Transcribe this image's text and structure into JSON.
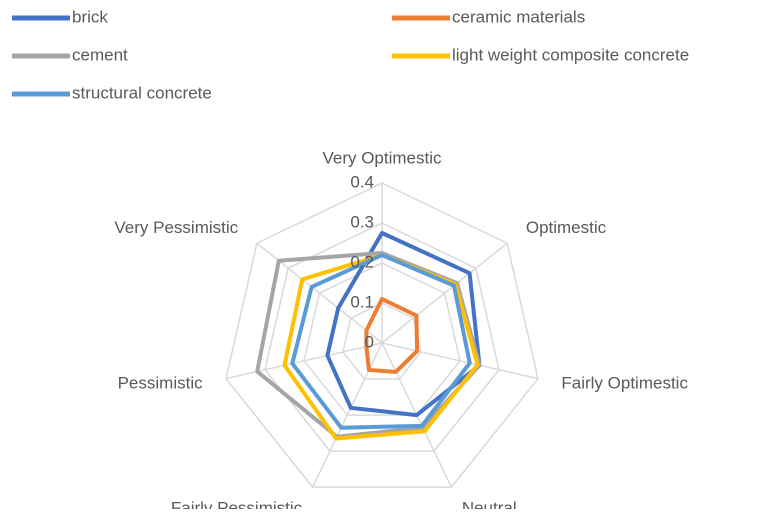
{
  "chart_data": {
    "type": "radar",
    "categories": [
      "Very Optimestic",
      "Optimestic",
      "Fairly Optimestic",
      "Neutral",
      "Fairly Pessimistic",
      "Pessimistic",
      "Very Pessimistic"
    ],
    "series": [
      {
        "name": "brick",
        "color": "#4472c4",
        "values": [
          0.275,
          0.28,
          0.25,
          0.2,
          0.18,
          0.14,
          0.14
        ]
      },
      {
        "name": "ceramic materials",
        "color": "#ed7d31",
        "values": [
          0.11,
          0.11,
          0.09,
          0.08,
          0.075,
          0.04,
          0.05
        ]
      },
      {
        "name": "cement",
        "color": "#a5a5a5",
        "values": [
          0.225,
          0.24,
          0.25,
          0.235,
          0.26,
          0.32,
          0.33
        ]
      },
      {
        "name": "light weight composite concrete",
        "color": "#ffc000",
        "values": [
          0.22,
          0.235,
          0.245,
          0.245,
          0.265,
          0.25,
          0.255
        ]
      },
      {
        "name": "structural concrete",
        "color": "#5b9bd5",
        "values": [
          0.22,
          0.23,
          0.225,
          0.23,
          0.235,
          0.23,
          0.225
        ]
      }
    ],
    "rlim": [
      0,
      0.4
    ],
    "rticks": [
      0,
      0.1,
      0.2,
      0.3,
      0.4
    ],
    "grid": true,
    "legend": "top"
  }
}
